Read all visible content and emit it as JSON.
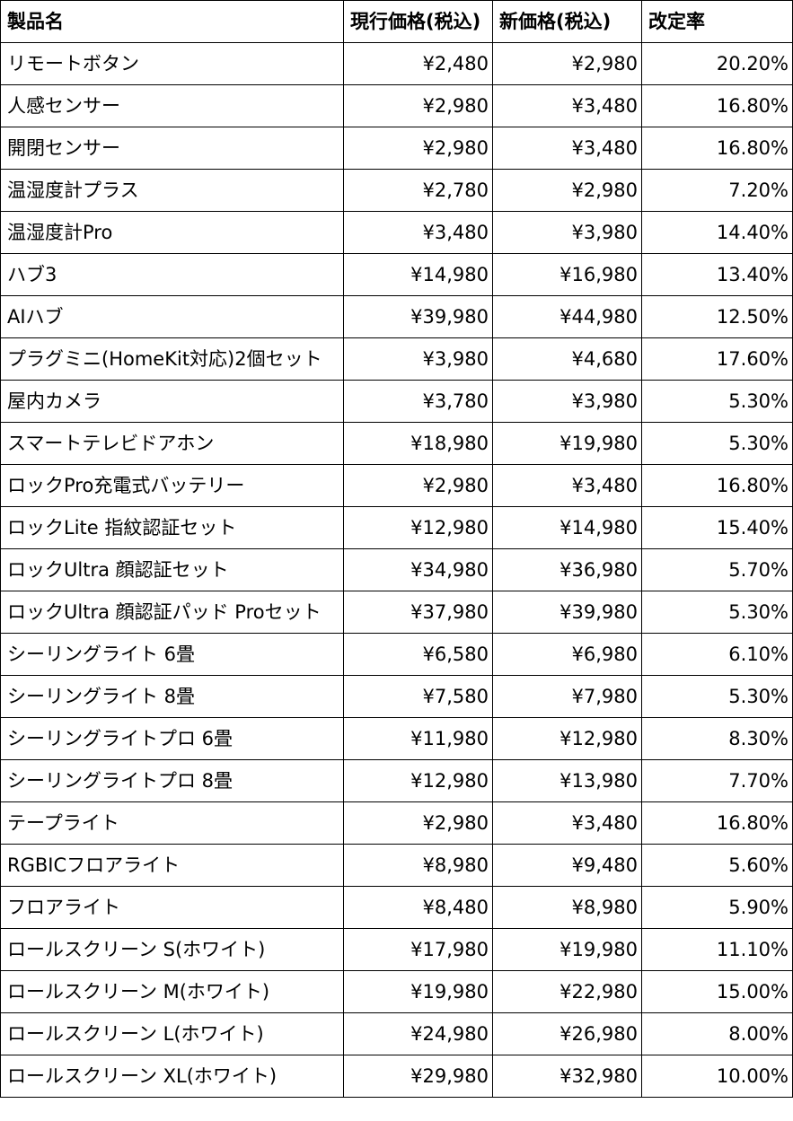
{
  "headers": [
    "製品名",
    "現行価格(税込)",
    "新価格(税込)",
    "改定率"
  ],
  "rows": [
    [
      "リモートボタン",
      "¥2,480",
      "¥2,980",
      "20.20%"
    ],
    [
      "人感センサー",
      "¥2,980",
      "¥3,480",
      "16.80%"
    ],
    [
      "開閉センサー",
      "¥2,980",
      "¥3,480",
      "16.80%"
    ],
    [
      "温湿度計プラス",
      "¥2,780",
      "¥2,980",
      "7.20%"
    ],
    [
      "温湿度計Pro",
      "¥3,480",
      "¥3,980",
      "14.40%"
    ],
    [
      "ハブ3",
      "¥14,980",
      "¥16,980",
      "13.40%"
    ],
    [
      "AIハブ",
      "¥39,980",
      "¥44,980",
      "12.50%"
    ],
    [
      "プラグミニ(HomeKit対応)2個セット",
      "¥3,980",
      "¥4,680",
      "17.60%"
    ],
    [
      "屋内カメラ",
      "¥3,780",
      "¥3,980",
      "5.30%"
    ],
    [
      "スマートテレビドアホン",
      "¥18,980",
      "¥19,980",
      "5.30%"
    ],
    [
      "ロックPro充電式バッテリー",
      "¥2,980",
      "¥3,480",
      "16.80%"
    ],
    [
      "ロックLite 指紋認証セット",
      "¥12,980",
      "¥14,980",
      "15.40%"
    ],
    [
      "ロックUltra 顔認証セット",
      "¥34,980",
      "¥36,980",
      "5.70%"
    ],
    [
      "ロックUltra 顔認証パッド Proセット",
      "¥37,980",
      "¥39,980",
      "5.30%"
    ],
    [
      "シーリングライト 6畳",
      "¥6,580",
      "¥6,980",
      "6.10%"
    ],
    [
      "シーリングライト 8畳",
      "¥7,580",
      "¥7,980",
      "5.30%"
    ],
    [
      "シーリングライトプロ 6畳",
      "¥11,980",
      "¥12,980",
      "8.30%"
    ],
    [
      "シーリングライトプロ 8畳",
      "¥12,980",
      "¥13,980",
      "7.70%"
    ],
    [
      "テープライト",
      "¥2,980",
      "¥3,480",
      "16.80%"
    ],
    [
      "RGBICフロアライト",
      "¥8,980",
      "¥9,480",
      "5.60%"
    ],
    [
      "フロアライト",
      "¥8,480",
      "¥8,980",
      "5.90%"
    ],
    [
      "ロールスクリーン S(ホワイト)",
      "¥17,980",
      "¥19,980",
      "11.10%"
    ],
    [
      "ロールスクリーン M(ホワイト)",
      "¥19,980",
      "¥22,980",
      "15.00%"
    ],
    [
      "ロールスクリーン L(ホワイト)",
      "¥24,980",
      "¥26,980",
      "8.00%"
    ],
    [
      "ロールスクリーン XL(ホワイト)",
      "¥29,980",
      "¥32,980",
      "10.00%"
    ]
  ]
}
